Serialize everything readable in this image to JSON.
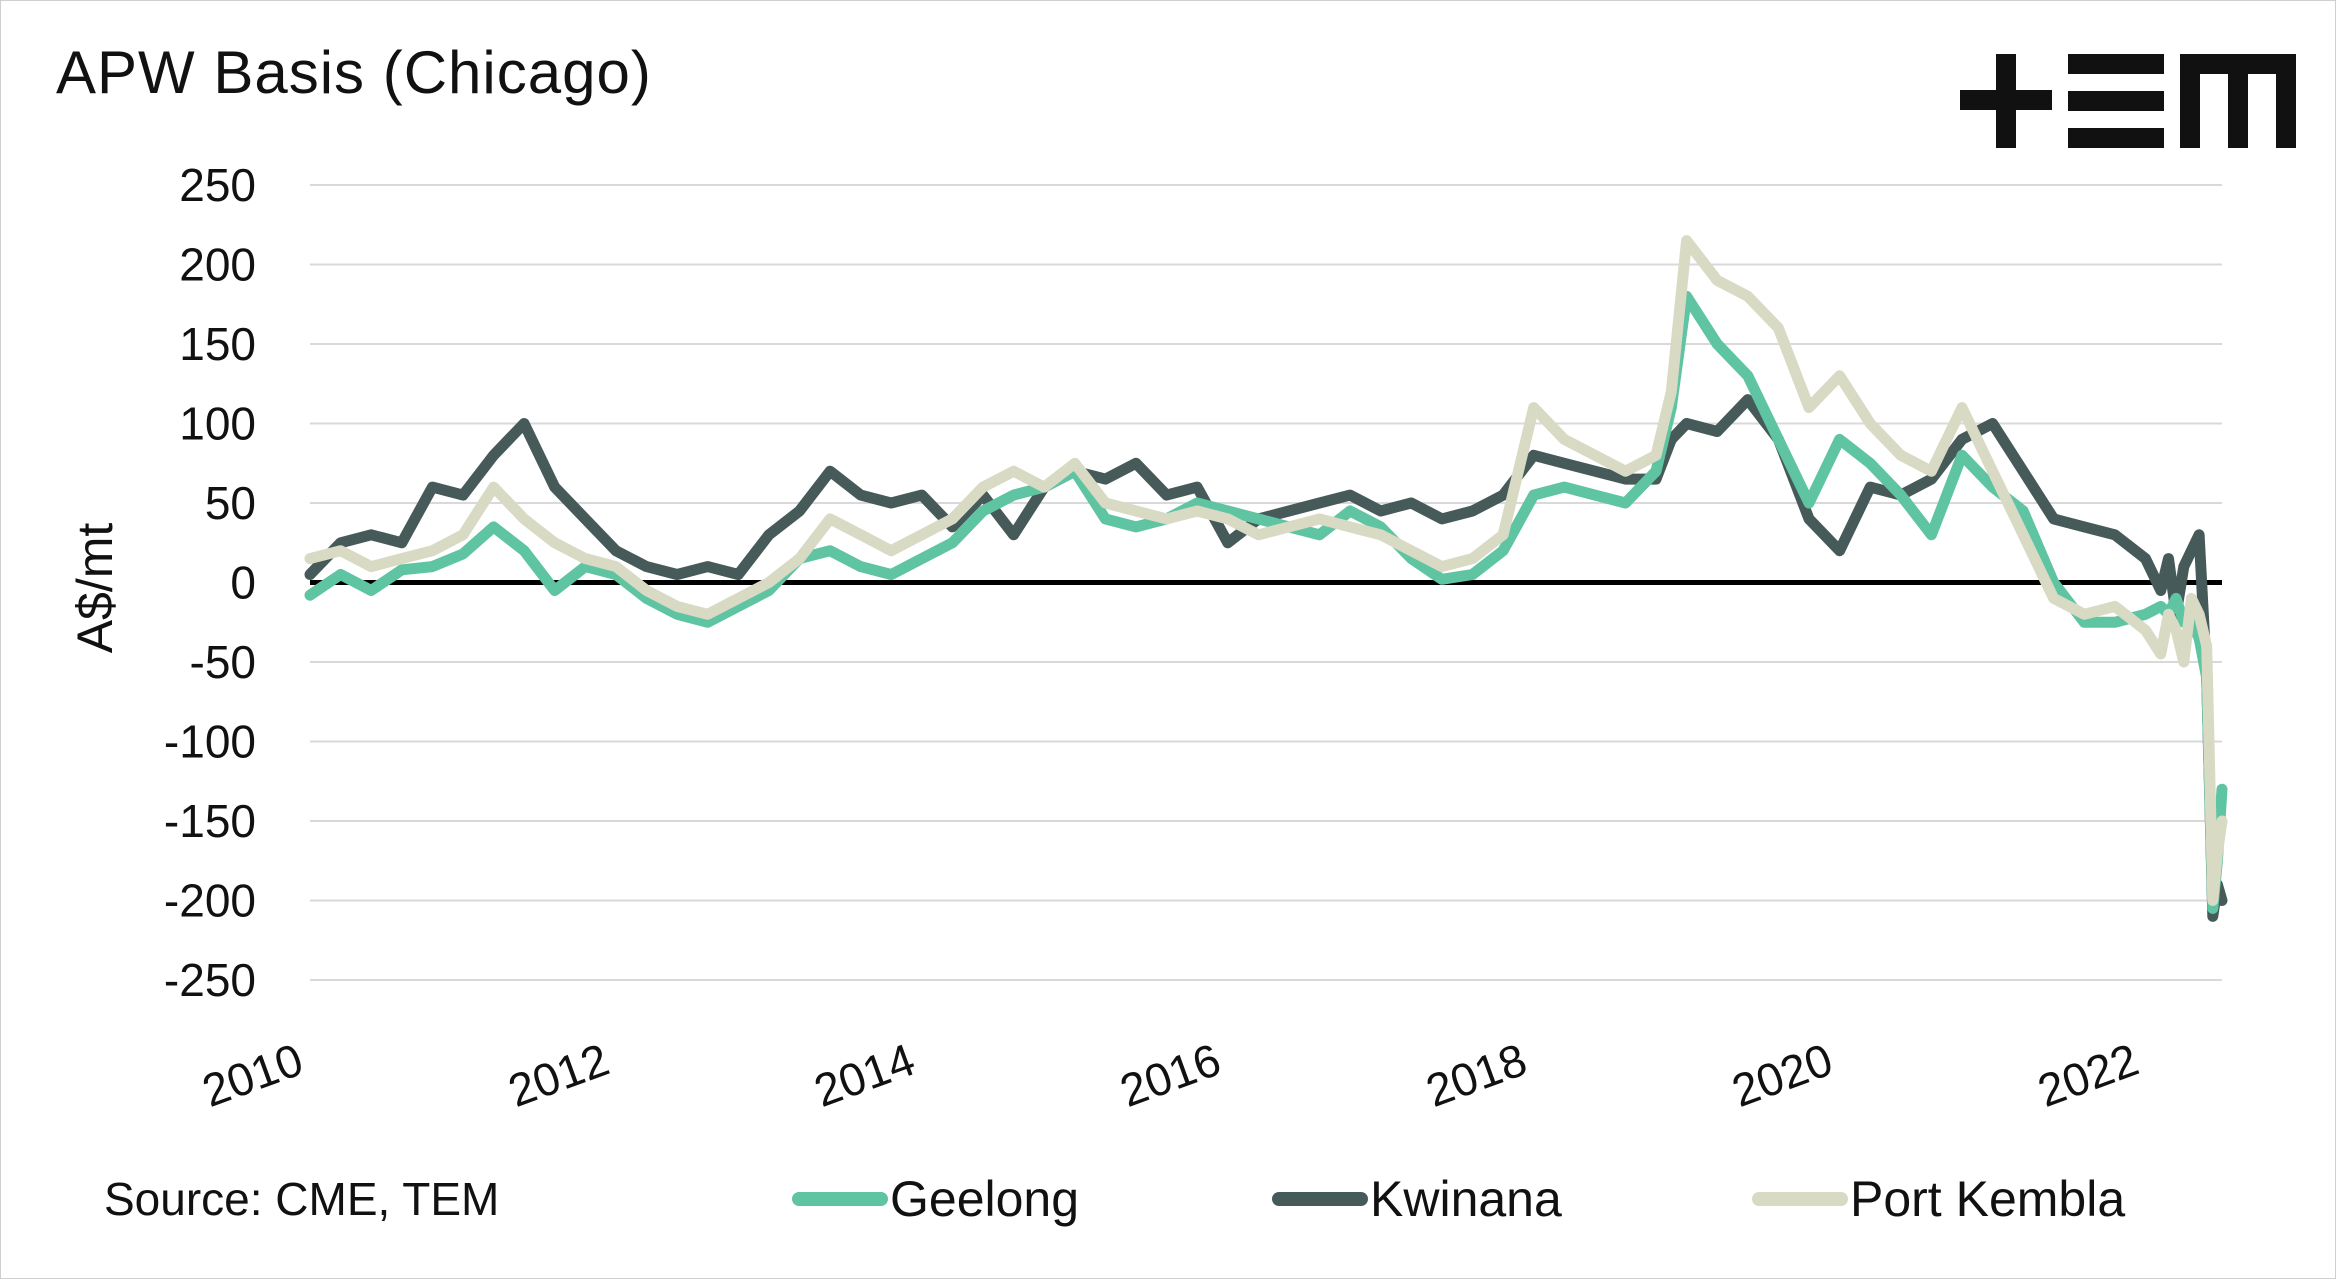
{
  "title": "APW Basis (Chicago)",
  "logo_text": "+TEM",
  "source": "Source: CME, TEM",
  "colors": {
    "geelong": "#5EC4A1",
    "kwinana": "#465A5A",
    "port_kembla": "#D9DAC4",
    "zero_line": "#000000",
    "grid": "#d9d9d9"
  },
  "chart_data": {
    "type": "line",
    "title": "APW Basis (Chicago)",
    "ylabel": "A$/mt",
    "xlabel": "",
    "ylim": [
      -250,
      250
    ],
    "xlim": [
      2010,
      2022.5
    ],
    "yticks": [
      250,
      200,
      150,
      100,
      50,
      0,
      -50,
      -100,
      -150,
      -200,
      -250
    ],
    "xticks": [
      "2010",
      "2012",
      "2014",
      "2016",
      "2018",
      "2020",
      "2022"
    ],
    "grid": true,
    "legend_position": "bottom",
    "series": [
      {
        "name": "Geelong",
        "color": "#5EC4A1",
        "x": [
          2010.0,
          2010.2,
          2010.4,
          2010.6,
          2010.8,
          2011.0,
          2011.2,
          2011.4,
          2011.6,
          2011.8,
          2012.0,
          2012.2,
          2012.4,
          2012.6,
          2012.8,
          2013.0,
          2013.2,
          2013.4,
          2013.6,
          2013.8,
          2014.0,
          2014.2,
          2014.4,
          2014.6,
          2014.8,
          2015.0,
          2015.2,
          2015.4,
          2015.6,
          2015.8,
          2016.0,
          2016.2,
          2016.4,
          2016.6,
          2016.8,
          2017.0,
          2017.2,
          2017.4,
          2017.6,
          2017.8,
          2018.0,
          2018.2,
          2018.4,
          2018.6,
          2018.8,
          2018.9,
          2019.0,
          2019.2,
          2019.4,
          2019.6,
          2019.8,
          2020.0,
          2020.2,
          2020.4,
          2020.6,
          2020.8,
          2021.0,
          2021.2,
          2021.4,
          2021.6,
          2021.8,
          2022.0,
          2022.1,
          2022.15,
          2022.2,
          2022.25,
          2022.3,
          2022.35,
          2022.4,
          2022.44,
          2022.47,
          2022.5
        ],
        "values": [
          -8,
          5,
          -5,
          8,
          10,
          18,
          35,
          20,
          -5,
          10,
          5,
          -10,
          -20,
          -25,
          -15,
          -5,
          15,
          20,
          10,
          5,
          15,
          25,
          45,
          55,
          60,
          70,
          40,
          35,
          40,
          50,
          45,
          40,
          35,
          30,
          45,
          35,
          15,
          2,
          5,
          20,
          55,
          60,
          55,
          50,
          70,
          110,
          180,
          150,
          130,
          90,
          50,
          90,
          75,
          55,
          30,
          80,
          60,
          45,
          0,
          -25,
          -25,
          -20,
          -15,
          -20,
          -10,
          -25,
          -25,
          -35,
          -60,
          -205,
          -175,
          -130
        ]
      },
      {
        "name": "Kwinana",
        "color": "#465A5A",
        "x": [
          2010.0,
          2010.2,
          2010.4,
          2010.6,
          2010.8,
          2011.0,
          2011.2,
          2011.4,
          2011.6,
          2011.8,
          2012.0,
          2012.2,
          2012.4,
          2012.6,
          2012.8,
          2013.0,
          2013.2,
          2013.4,
          2013.6,
          2013.8,
          2014.0,
          2014.2,
          2014.4,
          2014.6,
          2014.8,
          2015.0,
          2015.2,
          2015.4,
          2015.6,
          2015.8,
          2016.0,
          2016.2,
          2016.4,
          2016.6,
          2016.8,
          2017.0,
          2017.2,
          2017.4,
          2017.6,
          2017.8,
          2018.0,
          2018.2,
          2018.4,
          2018.6,
          2018.8,
          2018.9,
          2019.0,
          2019.2,
          2019.4,
          2019.6,
          2019.8,
          2020.0,
          2020.2,
          2020.4,
          2020.6,
          2020.8,
          2021.0,
          2021.2,
          2021.4,
          2021.6,
          2021.8,
          2022.0,
          2022.1,
          2022.15,
          2022.2,
          2022.25,
          2022.3,
          2022.35,
          2022.4,
          2022.44,
          2022.47,
          2022.5
        ],
        "values": [
          5,
          25,
          30,
          25,
          60,
          55,
          80,
          100,
          60,
          40,
          20,
          10,
          5,
          10,
          5,
          30,
          45,
          70,
          55,
          50,
          55,
          35,
          55,
          30,
          60,
          70,
          65,
          75,
          55,
          60,
          25,
          40,
          45,
          50,
          55,
          45,
          50,
          40,
          45,
          55,
          80,
          75,
          70,
          65,
          65,
          90,
          100,
          95,
          115,
          90,
          40,
          20,
          60,
          55,
          65,
          90,
          100,
          70,
          40,
          35,
          30,
          15,
          -5,
          15,
          -20,
          10,
          20,
          30,
          -60,
          -210,
          -190,
          -200
        ]
      },
      {
        "name": "Port Kembla",
        "color": "#D9DAC4",
        "x": [
          2010.0,
          2010.2,
          2010.4,
          2010.6,
          2010.8,
          2011.0,
          2011.2,
          2011.4,
          2011.6,
          2011.8,
          2012.0,
          2012.2,
          2012.4,
          2012.6,
          2012.8,
          2013.0,
          2013.2,
          2013.4,
          2013.6,
          2013.8,
          2014.0,
          2014.2,
          2014.4,
          2014.6,
          2014.8,
          2015.0,
          2015.2,
          2015.4,
          2015.6,
          2015.8,
          2016.0,
          2016.2,
          2016.4,
          2016.6,
          2016.8,
          2017.0,
          2017.2,
          2017.4,
          2017.6,
          2017.8,
          2018.0,
          2018.2,
          2018.4,
          2018.6,
          2018.8,
          2018.9,
          2019.0,
          2019.2,
          2019.4,
          2019.6,
          2019.8,
          2020.0,
          2020.2,
          2020.4,
          2020.6,
          2020.8,
          2021.0,
          2021.2,
          2021.4,
          2021.6,
          2021.8,
          2022.0,
          2022.1,
          2022.15,
          2022.2,
          2022.25,
          2022.3,
          2022.35,
          2022.4,
          2022.44,
          2022.47,
          2022.5
        ],
        "values": [
          15,
          20,
          10,
          15,
          20,
          30,
          60,
          40,
          25,
          15,
          10,
          -5,
          -15,
          -20,
          -10,
          0,
          15,
          40,
          30,
          20,
          30,
          40,
          60,
          70,
          60,
          75,
          50,
          45,
          40,
          45,
          40,
          30,
          35,
          40,
          35,
          30,
          20,
          10,
          15,
          30,
          110,
          90,
          80,
          70,
          80,
          120,
          215,
          190,
          180,
          160,
          110,
          130,
          100,
          80,
          70,
          110,
          70,
          30,
          -10,
          -20,
          -15,
          -30,
          -45,
          -20,
          -30,
          -50,
          -10,
          -20,
          -40,
          -200,
          -170,
          -150
        ]
      }
    ]
  }
}
